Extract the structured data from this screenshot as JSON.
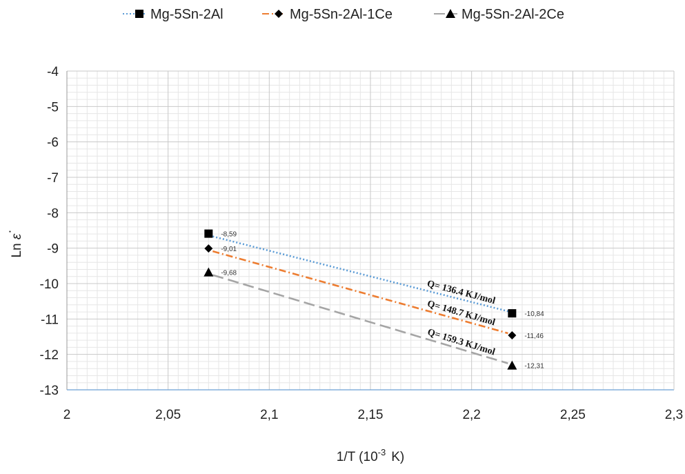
{
  "chart_data": {
    "type": "line",
    "xlabel_main": "1/T (10",
    "xlabel_sup": "-3",
    "xlabel_unit": "K)",
    "ylabel_main": "Ln",
    "ylabel_symbol": "ε",
    "ylabel_dot": "·",
    "xlim": [
      2,
      2.3
    ],
    "ylim": [
      -13,
      -4
    ],
    "x_ticks": [
      2,
      2.05,
      2.1,
      2.15,
      2.2,
      2.25,
      2.3
    ],
    "x_tick_labels": [
      "2",
      "2,05",
      "2,1",
      "2,15",
      "2,2",
      "2,25",
      "2,3"
    ],
    "y_ticks": [
      -4,
      -5,
      -6,
      -7,
      -8,
      -9,
      -10,
      -11,
      -12,
      -13
    ],
    "y_tick_labels": [
      "-4",
      "-5",
      "-6",
      "-7",
      "-8",
      "-9",
      "-10",
      "-11",
      "-12",
      "-13"
    ],
    "grid": true,
    "legend_position": "top",
    "series": [
      {
        "name": "Mg-5Sn-2Al",
        "x": [
          2.07,
          2.22
        ],
        "y": [
          -8.59,
          -10.84
        ],
        "labels": [
          "-8,59",
          "-10,84"
        ],
        "marker": "square",
        "color": "#5b9bd5",
        "dash": "dotted"
      },
      {
        "name": "Mg-5Sn-2Al-1Ce",
        "x": [
          2.07,
          2.22
        ],
        "y": [
          -9.01,
          -11.46
        ],
        "labels": [
          "-9,01",
          "-11,46"
        ],
        "marker": "diamond",
        "color": "#ed7d31",
        "dash": "dashdot"
      },
      {
        "name": "Mg-5Sn-2Al-2Ce",
        "x": [
          2.07,
          2.22
        ],
        "y": [
          -9.68,
          -12.31
        ],
        "labels": [
          "-9,68",
          "-12,31"
        ],
        "marker": "triangle",
        "color": "#a5a5a5",
        "dash": "longdash"
      }
    ],
    "annotations": [
      {
        "text": "Q= 136.4 KJ/mol",
        "series": 0
      },
      {
        "text": "Q= 148.7 KJ/mol",
        "series": 1
      },
      {
        "text": "Q= 159.3 KJ/mol",
        "series": 2
      }
    ]
  }
}
